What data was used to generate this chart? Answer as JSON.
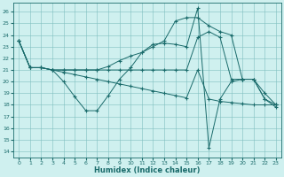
{
  "xlabel": "Humidex (Indice chaleur)",
  "bg_color": "#cff0ef",
  "grid_color": "#7fbfbf",
  "line_color": "#1a6b6b",
  "xlim": [
    -0.5,
    23.5
  ],
  "ylim": [
    13.5,
    26.8
  ],
  "yticks": [
    14,
    15,
    16,
    17,
    18,
    19,
    20,
    21,
    22,
    23,
    24,
    25,
    26
  ],
  "xticks": [
    0,
    1,
    2,
    3,
    4,
    5,
    6,
    7,
    8,
    9,
    10,
    11,
    12,
    13,
    14,
    15,
    16,
    17,
    18,
    19,
    20,
    21,
    22,
    23
  ],
  "series": [
    {
      "x": [
        0,
        1,
        2,
        3,
        4,
        5,
        6,
        7,
        8,
        9,
        10,
        11,
        12,
        13,
        14,
        15,
        16,
        17,
        18,
        19,
        20,
        21,
        22,
        23
      ],
      "y": [
        23.5,
        21.2,
        21.2,
        21.0,
        20.0,
        18.7,
        17.5,
        17.5,
        18.8,
        20.2,
        21.2,
        22.5,
        23.2,
        23.3,
        23.2,
        23.0,
        26.3,
        14.3,
        18.5,
        20.0,
        20.2,
        20.2,
        18.5,
        17.8
      ]
    },
    {
      "x": [
        0,
        1,
        2,
        3,
        4,
        5,
        6,
        7,
        8,
        9,
        10,
        11,
        12,
        13,
        14,
        15,
        16,
        17,
        18,
        19,
        20,
        21,
        22,
        23
      ],
      "y": [
        23.5,
        21.2,
        21.2,
        21.0,
        21.0,
        21.0,
        21.0,
        21.0,
        21.3,
        21.8,
        22.2,
        22.5,
        23.0,
        23.5,
        25.2,
        25.5,
        25.5,
        24.8,
        24.3,
        24.0,
        20.2,
        20.2,
        19.0,
        18.0
      ]
    },
    {
      "x": [
        0,
        1,
        2,
        3,
        4,
        5,
        6,
        7,
        8,
        9,
        10,
        11,
        12,
        13,
        14,
        15,
        16,
        17,
        18,
        19,
        20,
        21,
        22,
        23
      ],
      "y": [
        23.5,
        21.2,
        21.2,
        21.0,
        21.0,
        21.0,
        21.0,
        21.0,
        21.0,
        21.0,
        21.0,
        21.0,
        21.0,
        21.0,
        21.0,
        21.0,
        23.8,
        24.3,
        23.8,
        20.2,
        20.2,
        20.2,
        18.5,
        18.0
      ]
    },
    {
      "x": [
        0,
        1,
        2,
        3,
        4,
        5,
        6,
        7,
        8,
        9,
        10,
        11,
        12,
        13,
        14,
        15,
        16,
        17,
        18,
        19,
        20,
        21,
        22,
        23
      ],
      "y": [
        23.5,
        21.2,
        21.2,
        21.0,
        20.8,
        20.6,
        20.4,
        20.2,
        20.0,
        19.8,
        19.6,
        19.4,
        19.2,
        19.0,
        18.8,
        18.6,
        21.0,
        18.5,
        18.3,
        18.2,
        18.1,
        18.0,
        18.0,
        18.0
      ]
    }
  ]
}
